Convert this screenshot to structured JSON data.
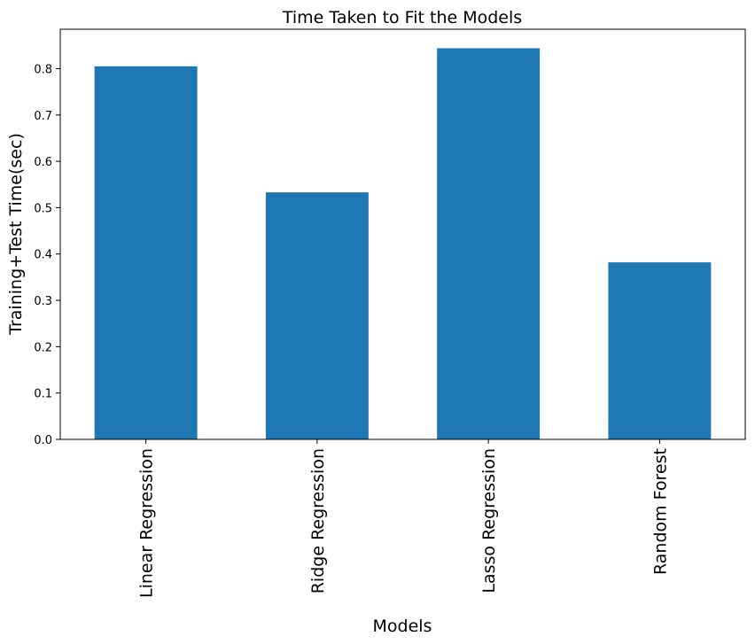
{
  "chart_data": {
    "type": "bar",
    "title": "Time Taken to Fit the Models",
    "xlabel": "Models",
    "ylabel": "Training+Test Time(sec)",
    "categories": [
      "Linear Regression",
      "Ridge Regression",
      "Lasso Regression",
      "Random Forest"
    ],
    "values": [
      0.805,
      0.533,
      0.844,
      0.382
    ],
    "ylim": [
      0,
      0.885
    ],
    "yticks": [
      0.0,
      0.1,
      0.2,
      0.3,
      0.4,
      0.5,
      0.6,
      0.7,
      0.8
    ],
    "ytick_labels": [
      "0.0",
      "0.1",
      "0.2",
      "0.3",
      "0.4",
      "0.5",
      "0.6",
      "0.7",
      "0.8"
    ],
    "bar_color": "#1f77b4",
    "grid": false,
    "legend": "none"
  }
}
